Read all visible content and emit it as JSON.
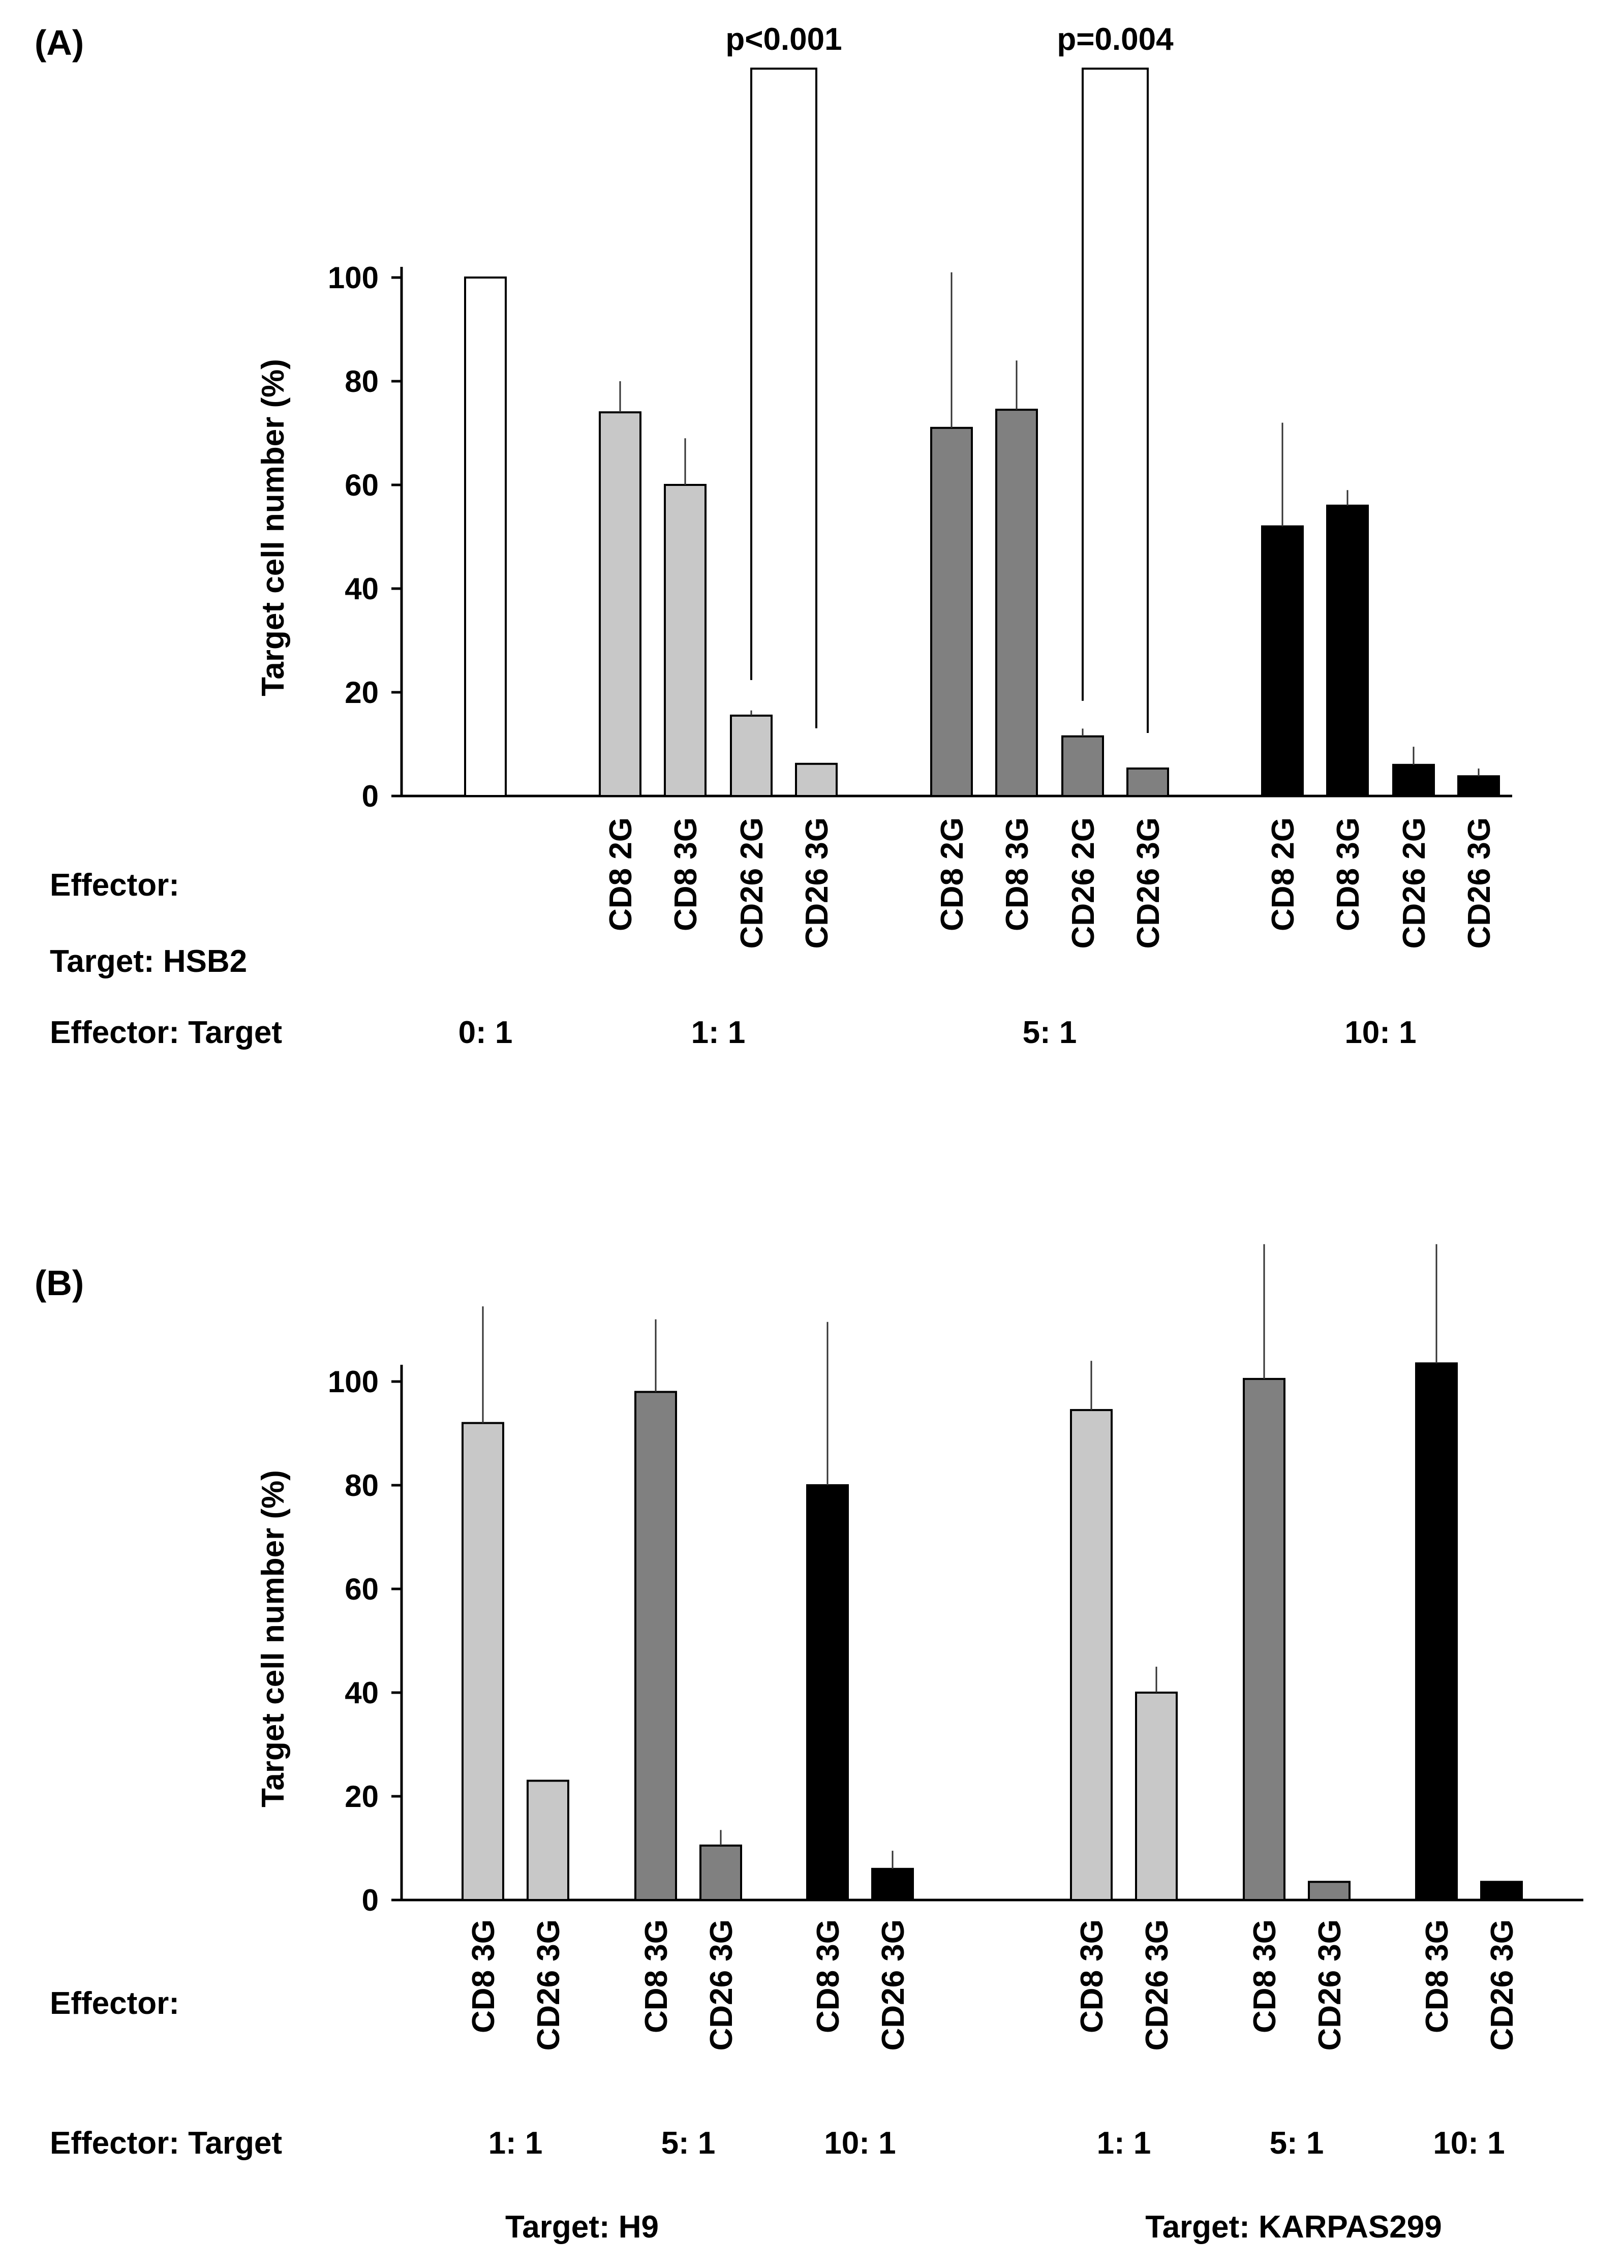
{
  "colors": {
    "ratio_0_1": "#ffffff",
    "ratio_1_1": "#c8c8c8",
    "ratio_5_1": "#808080",
    "ratio_10_1": "#000000",
    "outline": "#000000"
  },
  "chart_data": [
    {
      "panel": "(A)",
      "type": "bar",
      "ylabel": "Target cell number (%)",
      "ylim": [
        0,
        100
      ],
      "yticks": [
        0,
        20,
        40,
        60,
        80,
        100
      ],
      "row_labels": {
        "effector": "Effector:",
        "target": "Target: HSB2",
        "ratio": "Effector: Target"
      },
      "groups": [
        {
          "ratio": "0: 1",
          "color": "#ffffff",
          "bars": [
            {
              "label": "",
              "value": 100,
              "err": 0
            }
          ]
        },
        {
          "ratio": "1: 1",
          "color": "#c8c8c8",
          "bars": [
            {
              "label": "CD8 2G",
              "value": 74,
              "err": 6
            },
            {
              "label": "CD8 3G",
              "value": 60,
              "err": 9
            },
            {
              "label": "CD26 2G",
              "value": 15.5,
              "err": 1
            },
            {
              "label": "CD26 3G",
              "value": 6.2,
              "err": 0
            }
          ]
        },
        {
          "ratio": "5: 1",
          "color": "#808080",
          "bars": [
            {
              "label": "CD8 2G",
              "value": 71,
              "err": 30
            },
            {
              "label": "CD8 3G",
              "value": 74.5,
              "err": 9.5
            },
            {
              "label": "CD26 2G",
              "value": 11.5,
              "err": 1.5
            },
            {
              "label": "CD26 3G",
              "value": 5.3,
              "err": 0
            }
          ]
        },
        {
          "ratio": "10: 1",
          "color": "#000000",
          "bars": [
            {
              "label": "CD8 2G",
              "value": 52,
              "err": 20
            },
            {
              "label": "CD8 3G",
              "value": 56,
              "err": 3
            },
            {
              "label": "CD26 2G",
              "value": 6,
              "err": 3.5
            },
            {
              "label": "CD26 3G",
              "value": 3.8,
              "err": 1.5
            }
          ]
        }
      ],
      "annotations": [
        {
          "text": "p<0.001",
          "group": 1,
          "from_bar": 2,
          "to_bar": 3
        },
        {
          "text": "p=0.004",
          "group": 2,
          "from_bar": 2,
          "to_bar": 3
        }
      ]
    },
    {
      "panel": "(B)",
      "type": "bar",
      "ylabel": "Target cell number (%)",
      "ylim": [
        0,
        100
      ],
      "yticks": [
        0,
        20,
        40,
        60,
        80,
        100
      ],
      "row_labels": {
        "effector": "Effector:",
        "ratio": "Effector: Target"
      },
      "targets": [
        {
          "label": "Target: H9",
          "groups": [
            {
              "ratio": "1: 1",
              "color": "#c8c8c8",
              "bars": [
                {
                  "label": "CD8 3G",
                  "value": 92,
                  "err": 22.5
                },
                {
                  "label": "CD26 3G",
                  "value": 23,
                  "err": 0
                }
              ]
            },
            {
              "ratio": "5: 1",
              "color": "#808080",
              "bars": [
                {
                  "label": "CD8 3G",
                  "value": 98,
                  "err": 14
                },
                {
                  "label": "CD26 3G",
                  "value": 10.5,
                  "err": 3
                }
              ]
            },
            {
              "ratio": "10: 1",
              "color": "#000000",
              "bars": [
                {
                  "label": "CD8 3G",
                  "value": 80,
                  "err": 31.5
                },
                {
                  "label": "CD26 3G",
                  "value": 6,
                  "err": 3.5
                }
              ]
            }
          ]
        },
        {
          "label": "Target: KARPAS299",
          "groups": [
            {
              "ratio": "1: 1",
              "color": "#c8c8c8",
              "bars": [
                {
                  "label": "CD8 3G",
                  "value": 94.5,
                  "err": 9.5
                },
                {
                  "label": "CD26 3G",
                  "value": 40,
                  "err": 5
                }
              ]
            },
            {
              "ratio": "5: 1",
              "color": "#808080",
              "bars": [
                {
                  "label": "CD8 3G",
                  "value": 100.5,
                  "err": 26
                },
                {
                  "label": "CD26 3G",
                  "value": 3.5,
                  "err": 0
                }
              ]
            },
            {
              "ratio": "10: 1",
              "color": "#000000",
              "bars": [
                {
                  "label": "CD8 3G",
                  "value": 103.5,
                  "err": 23
                },
                {
                  "label": "CD26 3G",
                  "value": 3.5,
                  "err": 0
                }
              ]
            }
          ]
        }
      ]
    }
  ]
}
